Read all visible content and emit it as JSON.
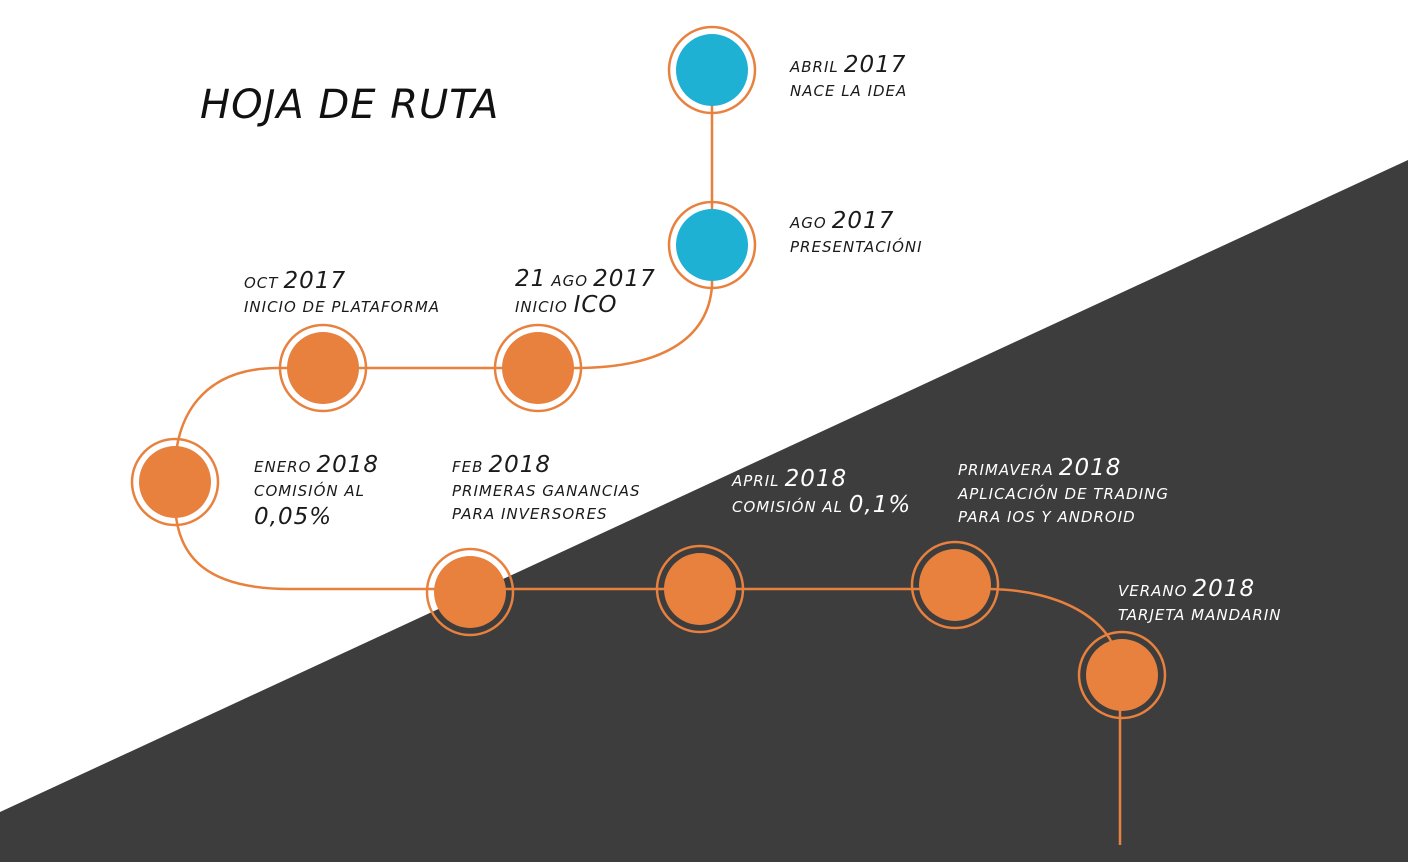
{
  "title": "HOJA DE RUTA",
  "colors": {
    "background": "#ffffff",
    "dark_band": "#3d3d3d",
    "orange": "#e8803e",
    "blue": "#1fb1d4",
    "path": "#e8803e"
  },
  "milestones": [
    {
      "id": "abril-2017",
      "prefix": "ABRIL",
      "year": "2017",
      "desc": [
        "NACE LA IDEA"
      ],
      "color": "blue"
    },
    {
      "id": "ago-2017",
      "prefix": "AGO",
      "year": "2017",
      "desc": [
        "PRESENTACIÓNI"
      ],
      "color": "blue"
    },
    {
      "id": "21-ago-2017",
      "prefix": "21",
      "prefix_small": "AGO",
      "year": "2017",
      "desc_small": "INICIO",
      "desc_big": "ICO",
      "color": "orange"
    },
    {
      "id": "oct-2017",
      "prefix": "OCT",
      "year": "2017",
      "desc": [
        "INICIO DE PLATAFORMA"
      ],
      "color": "orange"
    },
    {
      "id": "enero-2018",
      "prefix": "ENERO",
      "year": "2018",
      "desc": [
        "COMISIÓN AL"
      ],
      "desc_big": "0,05%",
      "color": "orange"
    },
    {
      "id": "feb-2018",
      "prefix": "FEB",
      "year": "2018",
      "desc": [
        "PRIMERAS GANANCIAS",
        "PARA INVERSORES"
      ],
      "color": "orange"
    },
    {
      "id": "april-2018",
      "prefix": "APRIL",
      "year": "2018",
      "desc_small": "COMISIÓN AL",
      "desc_big": "0,1%",
      "color": "orange"
    },
    {
      "id": "primavera-2018",
      "prefix": "PRIMAVERA",
      "year": "2018",
      "desc": [
        "APLICACIÓN DE TRADING",
        "PARA IOS Y ANDROID"
      ],
      "color": "orange"
    },
    {
      "id": "verano-2018",
      "prefix": "VERANO",
      "year": "2018",
      "desc": [
        "TARJETA MANDARIN"
      ],
      "color": "orange"
    }
  ]
}
